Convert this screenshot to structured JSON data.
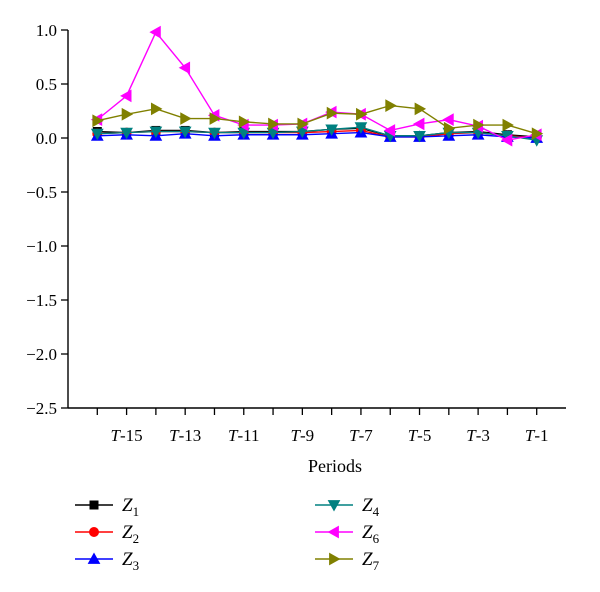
{
  "chart_data": {
    "type": "line",
    "title": "",
    "xlabel": "Periods",
    "ylabel": "",
    "x": [
      -16,
      -15,
      -14,
      -13,
      -12,
      -11,
      -10,
      -9,
      -8,
      -7,
      -6,
      -5,
      -4,
      -3,
      -2,
      -1
    ],
    "x_ticks": [
      {
        "value": -15,
        "label": "T-15"
      },
      {
        "value": -13,
        "label": "T-13"
      },
      {
        "value": -11,
        "label": "T-11"
      },
      {
        "value": -9,
        "label": "T-9"
      },
      {
        "value": -7,
        "label": "T-7"
      },
      {
        "value": -5,
        "label": "T-5"
      },
      {
        "value": -3,
        "label": "T-3"
      },
      {
        "value": -1,
        "label": "T-1"
      }
    ],
    "y_ticks": [
      {
        "value": 1.0,
        "label": "1.0"
      },
      {
        "value": 0.5,
        "label": "0.5"
      },
      {
        "value": 0.0,
        "label": "0.0"
      },
      {
        "value": -0.5,
        "label": "−0.5"
      },
      {
        "value": -1.0,
        "label": "−1.0"
      },
      {
        "value": -1.5,
        "label": "−1.5"
      },
      {
        "value": -2.0,
        "label": "−2.0"
      },
      {
        "value": -2.5,
        "label": "−2.5"
      }
    ],
    "xlim": [
      -17,
      0
    ],
    "ylim": [
      -2.5,
      1.0
    ],
    "grid": false,
    "legend_position": "bottom",
    "series": [
      {
        "name": "Z",
        "sub": "1",
        "color": "#000000",
        "marker": "square",
        "values": [
          0.06,
          0.05,
          0.07,
          0.07,
          0.05,
          0.06,
          0.06,
          0.06,
          0.08,
          0.09,
          0.02,
          0.02,
          0.05,
          0.06,
          0.03,
          0.01
        ]
      },
      {
        "name": "Z",
        "sub": "2",
        "color": "#ff0000",
        "marker": "circle",
        "values": [
          0.04,
          0.05,
          0.06,
          0.06,
          0.05,
          0.05,
          0.05,
          0.05,
          0.06,
          0.07,
          0.01,
          0.01,
          0.04,
          0.05,
          0.02,
          0.0
        ]
      },
      {
        "name": "Z",
        "sub": "3",
        "color": "#0000ff",
        "marker": "triangle-up",
        "values": [
          0.02,
          0.03,
          0.02,
          0.04,
          0.02,
          0.03,
          0.03,
          0.03,
          0.04,
          0.05,
          0.01,
          0.01,
          0.02,
          0.03,
          0.01,
          0.0
        ]
      },
      {
        "name": "Z",
        "sub": "4",
        "color": "#008080",
        "marker": "triangle-down",
        "values": [
          0.04,
          0.05,
          0.06,
          0.06,
          0.05,
          0.05,
          0.05,
          0.06,
          0.08,
          0.1,
          0.02,
          0.02,
          0.05,
          0.05,
          0.02,
          -0.02
        ]
      },
      {
        "name": "Z",
        "sub": "6",
        "color": "#ff00ff",
        "marker": "triangle-left",
        "values": [
          0.17,
          0.39,
          0.98,
          0.65,
          0.21,
          0.12,
          0.12,
          0.13,
          0.24,
          0.22,
          0.07,
          0.13,
          0.17,
          0.11,
          -0.02,
          0.03
        ]
      },
      {
        "name": "Z",
        "sub": "7",
        "color": "#808000",
        "marker": "triangle-right",
        "values": [
          0.16,
          0.22,
          0.27,
          0.18,
          0.18,
          0.15,
          0.13,
          0.13,
          0.23,
          0.22,
          0.3,
          0.27,
          0.09,
          0.12,
          0.12,
          0.04
        ]
      }
    ]
  }
}
